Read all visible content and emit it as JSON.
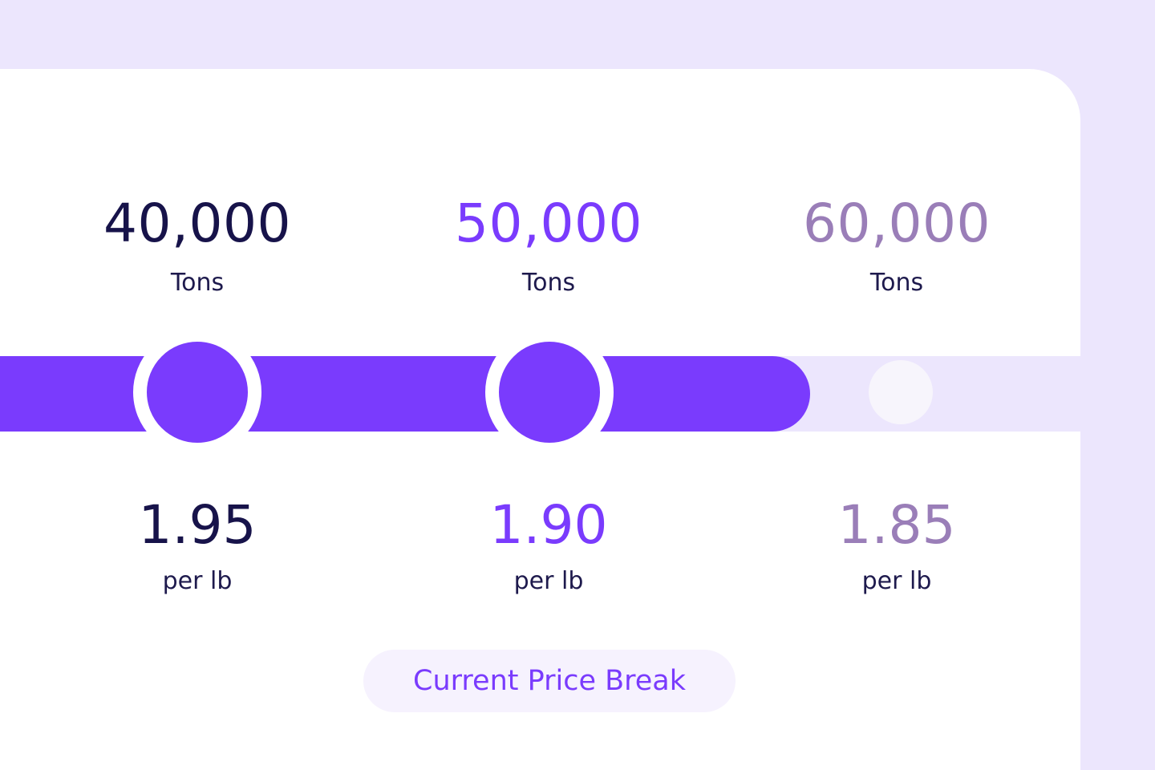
{
  "tiers": [
    {
      "quantity": "40,000",
      "unit": "Tons",
      "price": "1.95",
      "price_unit": "per lb",
      "state": "reached"
    },
    {
      "quantity": "50,000",
      "unit": "Tons",
      "price": "1.90",
      "price_unit": "per lb",
      "state": "current"
    },
    {
      "quantity": "60,000",
      "unit": "Tons",
      "price": "1.85",
      "price_unit": "per lb",
      "state": "upcoming"
    }
  ],
  "progress": {
    "fraction": 0.75
  },
  "badge": {
    "label": "Current Price Break"
  },
  "colors": {
    "accent": "#7A3BFD",
    "dark_text": "#17134A",
    "muted_text": "#9A7EB8",
    "track_background": "#ECE6FD",
    "page_background": "#ECE6FD",
    "card_background": "#FFFFFF"
  }
}
